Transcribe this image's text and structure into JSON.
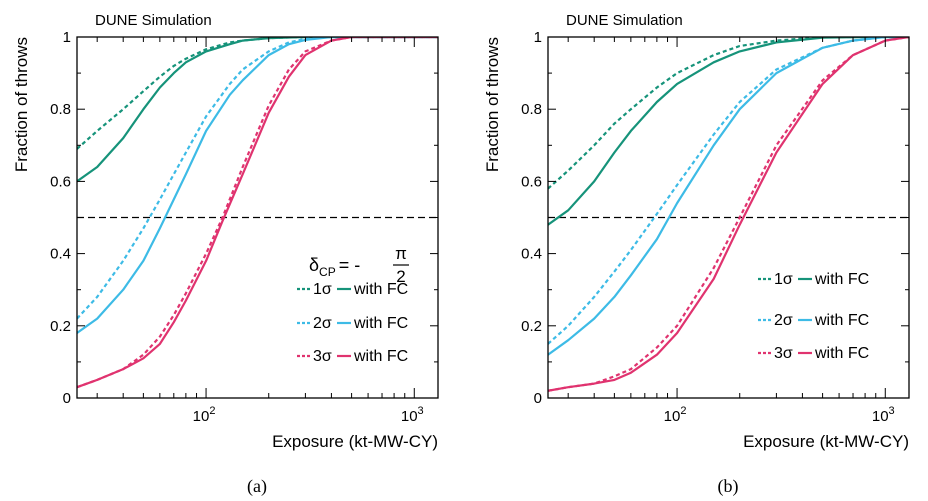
{
  "chart_data": [
    {
      "type": "line",
      "panel_label": "(a)",
      "title": "DUNE Simulation",
      "xlabel": "Exposure (kt-MW-CY)",
      "ylabel": "Fraction of throws",
      "x_scale": "log",
      "xlim": [
        24,
        1300
      ],
      "ylim": [
        0,
        1
      ],
      "x_ticks": [
        {
          "value": 100,
          "base": "10",
          "exp": "2"
        },
        {
          "value": 1000,
          "base": "10",
          "exp": "3"
        }
      ],
      "y_ticks": [
        {
          "value": 0,
          "label": "0"
        },
        {
          "value": 0.2,
          "label": "0.2"
        },
        {
          "value": 0.4,
          "label": "0.4"
        },
        {
          "value": 0.6,
          "label": "0.6"
        },
        {
          "value": 0.8,
          "label": "0.8"
        },
        {
          "value": 1,
          "label": "1"
        }
      ],
      "reference_line": {
        "y": 0.5,
        "style": "dashed"
      },
      "legend": {
        "placement": "bottom-right",
        "header": {
          "symbol": "δ",
          "subscript": "CP",
          "equals": "= -",
          "numerator": "π",
          "denominator": "2"
        },
        "rows": [
          {
            "dashed_label": "1σ",
            "solid_label": "with FC",
            "color": "#16937a"
          },
          {
            "dashed_label": "2σ",
            "solid_label": "with FC",
            "color": "#3dbbe6"
          },
          {
            "dashed_label": "3σ",
            "solid_label": "with FC",
            "color": "#e0336f"
          }
        ]
      },
      "series": [
        {
          "sigma": "1σ",
          "style": "dashed",
          "color": "#16937a",
          "x": [
            24,
            30,
            40,
            50,
            60,
            70,
            80,
            100,
            130,
            150,
            200,
            300,
            500,
            1300
          ],
          "y": [
            0.69,
            0.74,
            0.8,
            0.85,
            0.89,
            0.92,
            0.94,
            0.966,
            0.985,
            0.99,
            0.997,
            1.0,
            1.0,
            1.0
          ]
        },
        {
          "sigma": "1σ",
          "style": "solid",
          "color": "#16937a",
          "x": [
            24,
            30,
            40,
            50,
            60,
            70,
            80,
            100,
            130,
            150,
            200,
            300,
            500,
            1300
          ],
          "y": [
            0.6,
            0.64,
            0.72,
            0.8,
            0.86,
            0.9,
            0.93,
            0.96,
            0.98,
            0.99,
            0.997,
            1.0,
            1.0,
            1.0
          ]
        },
        {
          "sigma": "2σ",
          "style": "dashed",
          "color": "#3dbbe6",
          "x": [
            24,
            30,
            40,
            50,
            60,
            70,
            80,
            100,
            130,
            150,
            200,
            250,
            300,
            400,
            1300
          ],
          "y": [
            0.22,
            0.28,
            0.38,
            0.47,
            0.55,
            0.62,
            0.68,
            0.78,
            0.87,
            0.91,
            0.96,
            0.985,
            0.995,
            1.0,
            1.0
          ]
        },
        {
          "sigma": "2σ",
          "style": "solid",
          "color": "#3dbbe6",
          "x": [
            24,
            30,
            40,
            50,
            60,
            70,
            80,
            100,
            130,
            150,
            200,
            250,
            300,
            400,
            1300
          ],
          "y": [
            0.18,
            0.22,
            0.3,
            0.38,
            0.47,
            0.55,
            0.62,
            0.74,
            0.84,
            0.88,
            0.95,
            0.98,
            0.992,
            1.0,
            1.0
          ]
        },
        {
          "sigma": "3σ",
          "style": "dashed",
          "color": "#e0336f",
          "x": [
            24,
            30,
            40,
            50,
            60,
            70,
            80,
            100,
            120,
            150,
            200,
            250,
            300,
            400,
            500,
            1300
          ],
          "y": [
            0.03,
            0.05,
            0.08,
            0.12,
            0.17,
            0.23,
            0.29,
            0.4,
            0.5,
            0.64,
            0.81,
            0.91,
            0.96,
            0.99,
            1.0,
            1.0
          ]
        },
        {
          "sigma": "3σ",
          "style": "solid",
          "color": "#e0336f",
          "x": [
            24,
            30,
            40,
            50,
            60,
            70,
            80,
            100,
            120,
            150,
            200,
            250,
            300,
            400,
            500,
            1300
          ],
          "y": [
            0.03,
            0.05,
            0.08,
            0.11,
            0.15,
            0.21,
            0.27,
            0.38,
            0.49,
            0.62,
            0.79,
            0.89,
            0.95,
            0.99,
            1.0,
            1.0
          ]
        }
      ]
    },
    {
      "type": "line",
      "panel_label": "(b)",
      "title": "DUNE Simulation",
      "xlabel": "Exposure (kt-MW-CY)",
      "ylabel": "Fraction of throws",
      "x_scale": "log",
      "xlim": [
        24,
        1300
      ],
      "ylim": [
        0,
        1
      ],
      "x_ticks": [
        {
          "value": 100,
          "base": "10",
          "exp": "2"
        },
        {
          "value": 1000,
          "base": "10",
          "exp": "3"
        }
      ],
      "y_ticks": [
        {
          "value": 0,
          "label": "0"
        },
        {
          "value": 0.2,
          "label": "0.2"
        },
        {
          "value": 0.4,
          "label": "0.4"
        },
        {
          "value": 0.6,
          "label": "0.6"
        },
        {
          "value": 0.8,
          "label": "0.8"
        },
        {
          "value": 1,
          "label": "1"
        }
      ],
      "reference_line": {
        "y": 0.5,
        "style": "dashed"
      },
      "legend": {
        "placement": "bottom-right",
        "rows": [
          {
            "dashed_label": "1σ",
            "solid_label": "with FC",
            "color": "#16937a"
          },
          {
            "dashed_label": "2σ",
            "solid_label": "with FC",
            "color": "#3dbbe6"
          },
          {
            "dashed_label": "3σ",
            "solid_label": "with FC",
            "color": "#e0336f"
          }
        ]
      },
      "series": [
        {
          "sigma": "1σ",
          "style": "dashed",
          "color": "#16937a",
          "x": [
            24,
            30,
            40,
            50,
            60,
            80,
            100,
            150,
            200,
            300,
            500,
            800,
            1300
          ],
          "y": [
            0.58,
            0.63,
            0.7,
            0.76,
            0.8,
            0.86,
            0.9,
            0.95,
            0.975,
            0.99,
            1.0,
            1.0,
            1.0
          ]
        },
        {
          "sigma": "1σ",
          "style": "solid",
          "color": "#16937a",
          "x": [
            24,
            30,
            40,
            50,
            60,
            80,
            100,
            150,
            200,
            300,
            500,
            800,
            1300
          ],
          "y": [
            0.48,
            0.52,
            0.6,
            0.68,
            0.74,
            0.82,
            0.87,
            0.93,
            0.96,
            0.985,
            0.998,
            1.0,
            1.0
          ]
        },
        {
          "sigma": "2σ",
          "style": "dashed",
          "color": "#3dbbe6",
          "x": [
            24,
            30,
            40,
            50,
            60,
            80,
            100,
            150,
            200,
            300,
            500,
            700,
            1000,
            1300
          ],
          "y": [
            0.15,
            0.2,
            0.28,
            0.35,
            0.41,
            0.51,
            0.59,
            0.73,
            0.82,
            0.91,
            0.97,
            0.99,
            1.0,
            1.0
          ]
        },
        {
          "sigma": "2σ",
          "style": "solid",
          "color": "#3dbbe6",
          "x": [
            24,
            30,
            40,
            50,
            60,
            80,
            100,
            150,
            200,
            300,
            500,
            700,
            1000,
            1300
          ],
          "y": [
            0.12,
            0.16,
            0.22,
            0.28,
            0.34,
            0.44,
            0.54,
            0.7,
            0.8,
            0.9,
            0.97,
            0.99,
            1.0,
            1.0
          ]
        },
        {
          "sigma": "3σ",
          "style": "dashed",
          "color": "#e0336f",
          "x": [
            24,
            30,
            40,
            50,
            60,
            80,
            100,
            150,
            200,
            300,
            500,
            700,
            1000,
            1300
          ],
          "y": [
            0.02,
            0.03,
            0.04,
            0.06,
            0.08,
            0.14,
            0.2,
            0.36,
            0.5,
            0.7,
            0.88,
            0.95,
            0.99,
            1.0
          ]
        },
        {
          "sigma": "3σ",
          "style": "solid",
          "color": "#e0336f",
          "x": [
            24,
            30,
            40,
            50,
            60,
            80,
            100,
            150,
            200,
            300,
            500,
            700,
            1000,
            1300
          ],
          "y": [
            0.02,
            0.03,
            0.04,
            0.05,
            0.07,
            0.12,
            0.18,
            0.33,
            0.48,
            0.68,
            0.87,
            0.95,
            0.99,
            1.0
          ]
        }
      ]
    }
  ]
}
